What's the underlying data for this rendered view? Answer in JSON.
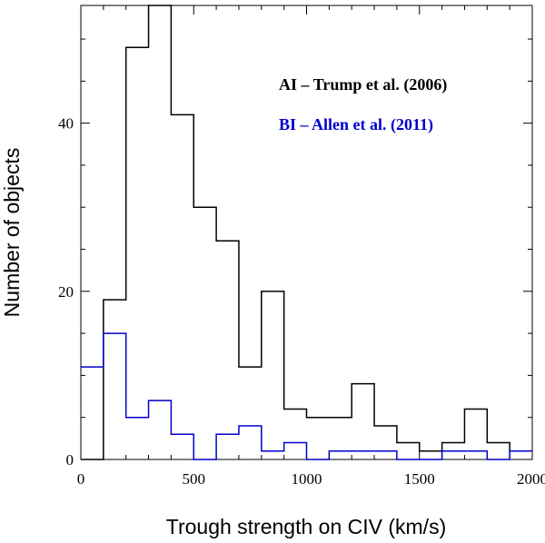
{
  "chart_data": {
    "type": "histogram",
    "xlabel": "Trough strength on CIV (km/s)",
    "ylabel": "Number of objects",
    "xlim": [
      0,
      2000
    ],
    "ylim": [
      0,
      54
    ],
    "x_ticks": [
      0,
      500,
      1000,
      1500,
      2000
    ],
    "y_ticks": [
      0,
      20,
      40
    ],
    "bin_width": 100,
    "bin_starts": [
      0,
      100,
      200,
      300,
      400,
      500,
      600,
      700,
      800,
      900,
      1000,
      1100,
      1200,
      1300,
      1400,
      1500,
      1600,
      1700,
      1800,
      1900
    ],
    "series": [
      {
        "name": "AI – Trump et al. (2006)",
        "color": "#000000",
        "values": [
          0,
          19,
          49,
          54,
          41,
          30,
          26,
          11,
          20,
          6,
          5,
          5,
          9,
          4,
          2,
          1,
          2,
          6,
          2,
          1
        ]
      },
      {
        "name": "BI – Allen et al. (2011)",
        "color": "#0000cc",
        "values": [
          11,
          15,
          5,
          7,
          3,
          0,
          3,
          4,
          1,
          2,
          0,
          1,
          1,
          1,
          0,
          0,
          1,
          1,
          0,
          1
        ]
      }
    ],
    "grid": false,
    "legend_position": "top-right"
  }
}
